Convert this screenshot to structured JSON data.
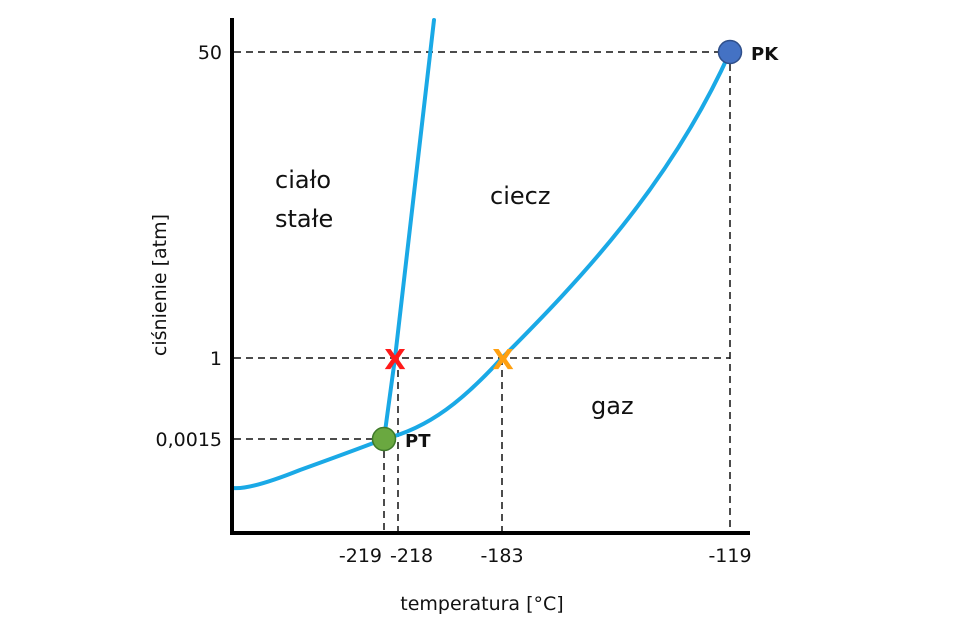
{
  "diagram": {
    "y_axis_title": "ciśnienie [atm]",
    "x_axis_title": "temperatura [°C]",
    "y_ticks": [
      "50",
      "1",
      "0,0015"
    ],
    "x_ticks": [
      "-219",
      "-218",
      "-183",
      "-119"
    ],
    "regions": {
      "solid_line1": "ciało",
      "solid_line2": "stałe",
      "liquid": "ciecz",
      "gas": "gaz"
    },
    "points": {
      "triple": "PT",
      "critical": "PK"
    },
    "markers": {
      "melting": "X",
      "boiling": "X"
    },
    "colors": {
      "curve": "#1aa9e6",
      "triple_point": "#6aa840",
      "critical_point": "#4472c4",
      "melting_marker": "#ff1a1a",
      "boiling_marker": "#ffa010"
    }
  }
}
